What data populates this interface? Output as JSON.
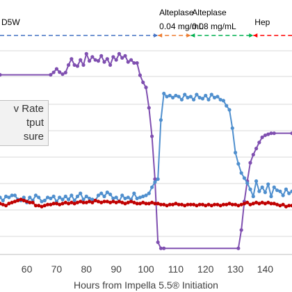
{
  "chart_data": {
    "type": "line",
    "xlabel": "Hours from Impella 5.5® Initiation",
    "xlim": [
      51,
      149
    ],
    "x_ticks": [
      60,
      70,
      80,
      90,
      100,
      110,
      120,
      130,
      140
    ],
    "grid": "horizontal",
    "annotations": [
      {
        "label": "D5W",
        "x_start": 51,
        "x_end": 104,
        "color": "#4472c4"
      },
      {
        "label": "Alteplase\n0.04 mg/mL",
        "x_start": 104,
        "x_end": 115,
        "color": "#ed7d31"
      },
      {
        "label": "Alteplase\n0.08 mg/mL",
        "x_start": 115,
        "x_end": 136,
        "color": "#00b050"
      },
      {
        "label": "Hep",
        "x_start": 136,
        "x_end": 149,
        "color": "#ff0000"
      }
    ],
    "legend": {
      "placement": "left",
      "entries": [
        {
          "text": "v Rate",
          "color": "#7f4fb0"
        },
        {
          "text": "tput",
          "color": "#4f8fce"
        },
        {
          "text": "sure",
          "color": "#c00000"
        }
      ]
    },
    "series": [
      {
        "key": "purple",
        "color": "#7f4fb0",
        "y_units": "plot-level (0=bottom gridline, 1=top gridline)",
        "points": [
          [
            51,
            0.882
          ],
          [
            68,
            0.882
          ],
          [
            69,
            0.894
          ],
          [
            70,
            0.911
          ],
          [
            71,
            0.895
          ],
          [
            72,
            0.885
          ],
          [
            73,
            0.893
          ],
          [
            74,
            0.93
          ],
          [
            75,
            0.96
          ],
          [
            76,
            0.93
          ],
          [
            77,
            0.925
          ],
          [
            78,
            0.955
          ],
          [
            79,
            0.93
          ],
          [
            80,
            0.985
          ],
          [
            81,
            0.95
          ],
          [
            82,
            0.97
          ],
          [
            83,
            0.955
          ],
          [
            84,
            0.95
          ],
          [
            85,
            0.975
          ],
          [
            86,
            0.945
          ],
          [
            87,
            0.96
          ],
          [
            88,
            0.93
          ],
          [
            89,
            0.97
          ],
          [
            90,
            0.955
          ],
          [
            91,
            0.985
          ],
          [
            92,
            0.965
          ],
          [
            93,
            0.975
          ],
          [
            94,
            0.945
          ],
          [
            95,
            0.955
          ],
          [
            96,
            0.94
          ],
          [
            97,
            0.94
          ],
          [
            98,
            0.88
          ],
          [
            99,
            0.845
          ],
          [
            100,
            0.82
          ],
          [
            101,
            0.72
          ],
          [
            102,
            0.58
          ],
          [
            103,
            0.37
          ],
          [
            104,
            0.06
          ],
          [
            105,
            0.03
          ],
          [
            106,
            0.03
          ],
          [
            131,
            0.03
          ],
          [
            132,
            0.12
          ],
          [
            133,
            0.26
          ],
          [
            134,
            0.36
          ],
          [
            135,
            0.45
          ],
          [
            136,
            0.49
          ],
          [
            137,
            0.52
          ],
          [
            138,
            0.55
          ],
          [
            139,
            0.575
          ],
          [
            140,
            0.585
          ],
          [
            141,
            0.59
          ],
          [
            142,
            0.595
          ],
          [
            143,
            0.595
          ],
          [
            149,
            0.595
          ]
        ]
      },
      {
        "key": "blue",
        "color": "#4f8fce",
        "y_units": "plot-level (0=bottom gridline, 1=top gridline)",
        "points": [
          [
            51,
            0.28
          ],
          [
            52,
            0.265
          ],
          [
            53,
            0.285
          ],
          [
            54,
            0.28
          ],
          [
            55,
            0.29
          ],
          [
            56,
            0.29
          ],
          [
            57,
            0.27
          ],
          [
            58,
            0.265
          ],
          [
            59,
            0.28
          ],
          [
            60,
            0.255
          ],
          [
            61,
            0.28
          ],
          [
            62,
            0.265
          ],
          [
            63,
            0.29
          ],
          [
            64,
            0.28
          ],
          [
            65,
            0.26
          ],
          [
            66,
            0.265
          ],
          [
            67,
            0.28
          ],
          [
            68,
            0.275
          ],
          [
            69,
            0.285
          ],
          [
            70,
            0.26
          ],
          [
            71,
            0.28
          ],
          [
            72,
            0.27
          ],
          [
            73,
            0.285
          ],
          [
            74,
            0.27
          ],
          [
            75,
            0.29
          ],
          [
            76,
            0.265
          ],
          [
            77,
            0.285
          ],
          [
            78,
            0.3
          ],
          [
            79,
            0.27
          ],
          [
            80,
            0.285
          ],
          [
            81,
            0.275
          ],
          [
            82,
            0.27
          ],
          [
            83,
            0.265
          ],
          [
            84,
            0.29
          ],
          [
            85,
            0.3
          ],
          [
            86,
            0.285
          ],
          [
            87,
            0.305
          ],
          [
            88,
            0.295
          ],
          [
            89,
            0.275
          ],
          [
            90,
            0.28
          ],
          [
            91,
            0.26
          ],
          [
            92,
            0.29
          ],
          [
            93,
            0.275
          ],
          [
            94,
            0.28
          ],
          [
            95,
            0.27
          ],
          [
            96,
            0.3
          ],
          [
            97,
            0.275
          ],
          [
            98,
            0.28
          ],
          [
            99,
            0.285
          ],
          [
            100,
            0.29
          ],
          [
            101,
            0.3
          ],
          [
            102,
            0.33
          ],
          [
            103,
            0.355
          ],
          [
            104,
            0.37
          ],
          [
            105,
            0.66
          ],
          [
            106,
            0.79
          ],
          [
            107,
            0.775
          ],
          [
            108,
            0.78
          ],
          [
            109,
            0.77
          ],
          [
            110,
            0.78
          ],
          [
            111,
            0.775
          ],
          [
            112,
            0.76
          ],
          [
            113,
            0.785
          ],
          [
            114,
            0.77
          ],
          [
            115,
            0.775
          ],
          [
            116,
            0.76
          ],
          [
            117,
            0.785
          ],
          [
            118,
            0.77
          ],
          [
            119,
            0.765
          ],
          [
            120,
            0.78
          ],
          [
            121,
            0.76
          ],
          [
            122,
            0.785
          ],
          [
            123,
            0.77
          ],
          [
            124,
            0.775
          ],
          [
            125,
            0.76
          ],
          [
            126,
            0.755
          ],
          [
            127,
            0.73
          ],
          [
            128,
            0.71
          ],
          [
            129,
            0.62
          ],
          [
            130,
            0.5
          ],
          [
            131,
            0.445
          ],
          [
            132,
            0.4
          ],
          [
            133,
            0.375
          ],
          [
            134,
            0.35
          ],
          [
            135,
            0.32
          ],
          [
            136,
            0.285
          ],
          [
            137,
            0.36
          ],
          [
            138,
            0.31
          ],
          [
            139,
            0.33
          ],
          [
            140,
            0.305
          ],
          [
            141,
            0.345
          ],
          [
            142,
            0.285
          ],
          [
            143,
            0.33
          ],
          [
            144,
            0.315
          ],
          [
            145,
            0.31
          ],
          [
            146,
            0.29
          ],
          [
            147,
            0.32
          ],
          [
            148,
            0.3
          ],
          [
            149,
            0.31
          ]
        ]
      },
      {
        "key": "red",
        "color": "#c00000",
        "y_units": "plot-level (0=bottom gridline, 1=top gridline)",
        "points": [
          [
            51,
            0.25
          ],
          [
            52,
            0.245
          ],
          [
            53,
            0.24
          ],
          [
            54,
            0.25
          ],
          [
            55,
            0.255
          ],
          [
            56,
            0.26
          ],
          [
            57,
            0.265
          ],
          [
            58,
            0.27
          ],
          [
            59,
            0.265
          ],
          [
            60,
            0.26
          ],
          [
            61,
            0.255
          ],
          [
            62,
            0.255
          ],
          [
            63,
            0.24
          ],
          [
            64,
            0.24
          ],
          [
            65,
            0.235
          ],
          [
            66,
            0.24
          ],
          [
            67,
            0.245
          ],
          [
            68,
            0.245
          ],
          [
            69,
            0.25
          ],
          [
            70,
            0.25
          ],
          [
            71,
            0.245
          ],
          [
            72,
            0.25
          ],
          [
            73,
            0.255
          ],
          [
            74,
            0.25
          ],
          [
            75,
            0.255
          ],
          [
            76,
            0.25
          ],
          [
            77,
            0.255
          ],
          [
            78,
            0.26
          ],
          [
            79,
            0.255
          ],
          [
            80,
            0.255
          ],
          [
            81,
            0.26
          ],
          [
            82,
            0.255
          ],
          [
            83,
            0.265
          ],
          [
            84,
            0.26
          ],
          [
            85,
            0.255
          ],
          [
            86,
            0.26
          ],
          [
            87,
            0.26
          ],
          [
            88,
            0.255
          ],
          [
            89,
            0.26
          ],
          [
            90,
            0.255
          ],
          [
            91,
            0.26
          ],
          [
            92,
            0.255
          ],
          [
            93,
            0.25
          ],
          [
            94,
            0.255
          ],
          [
            95,
            0.26
          ],
          [
            96,
            0.255
          ],
          [
            97,
            0.25
          ],
          [
            98,
            0.25
          ],
          [
            99,
            0.255
          ],
          [
            100,
            0.25
          ],
          [
            101,
            0.25
          ],
          [
            102,
            0.255
          ],
          [
            103,
            0.25
          ],
          [
            104,
            0.25
          ],
          [
            105,
            0.245
          ],
          [
            106,
            0.245
          ],
          [
            107,
            0.24
          ],
          [
            108,
            0.245
          ],
          [
            109,
            0.245
          ],
          [
            110,
            0.25
          ],
          [
            111,
            0.245
          ],
          [
            112,
            0.245
          ],
          [
            113,
            0.24
          ],
          [
            114,
            0.245
          ],
          [
            115,
            0.245
          ],
          [
            116,
            0.245
          ],
          [
            117,
            0.24
          ],
          [
            118,
            0.245
          ],
          [
            119,
            0.245
          ],
          [
            120,
            0.24
          ],
          [
            121,
            0.245
          ],
          [
            122,
            0.24
          ],
          [
            123,
            0.245
          ],
          [
            124,
            0.245
          ],
          [
            125,
            0.24
          ],
          [
            126,
            0.245
          ],
          [
            127,
            0.245
          ],
          [
            128,
            0.25
          ],
          [
            129,
            0.245
          ],
          [
            130,
            0.245
          ],
          [
            131,
            0.24
          ],
          [
            132,
            0.245
          ],
          [
            133,
            0.25
          ],
          [
            134,
            0.255
          ],
          [
            135,
            0.245
          ],
          [
            136,
            0.25
          ],
          [
            137,
            0.255
          ],
          [
            138,
            0.25
          ],
          [
            139,
            0.255
          ],
          [
            140,
            0.25
          ],
          [
            141,
            0.255
          ],
          [
            142,
            0.25
          ],
          [
            143,
            0.25
          ],
          [
            144,
            0.245
          ],
          [
            145,
            0.24
          ],
          [
            146,
            0.245
          ],
          [
            147,
            0.235
          ],
          [
            148,
            0.24
          ],
          [
            149,
            0.24
          ]
        ]
      }
    ]
  }
}
